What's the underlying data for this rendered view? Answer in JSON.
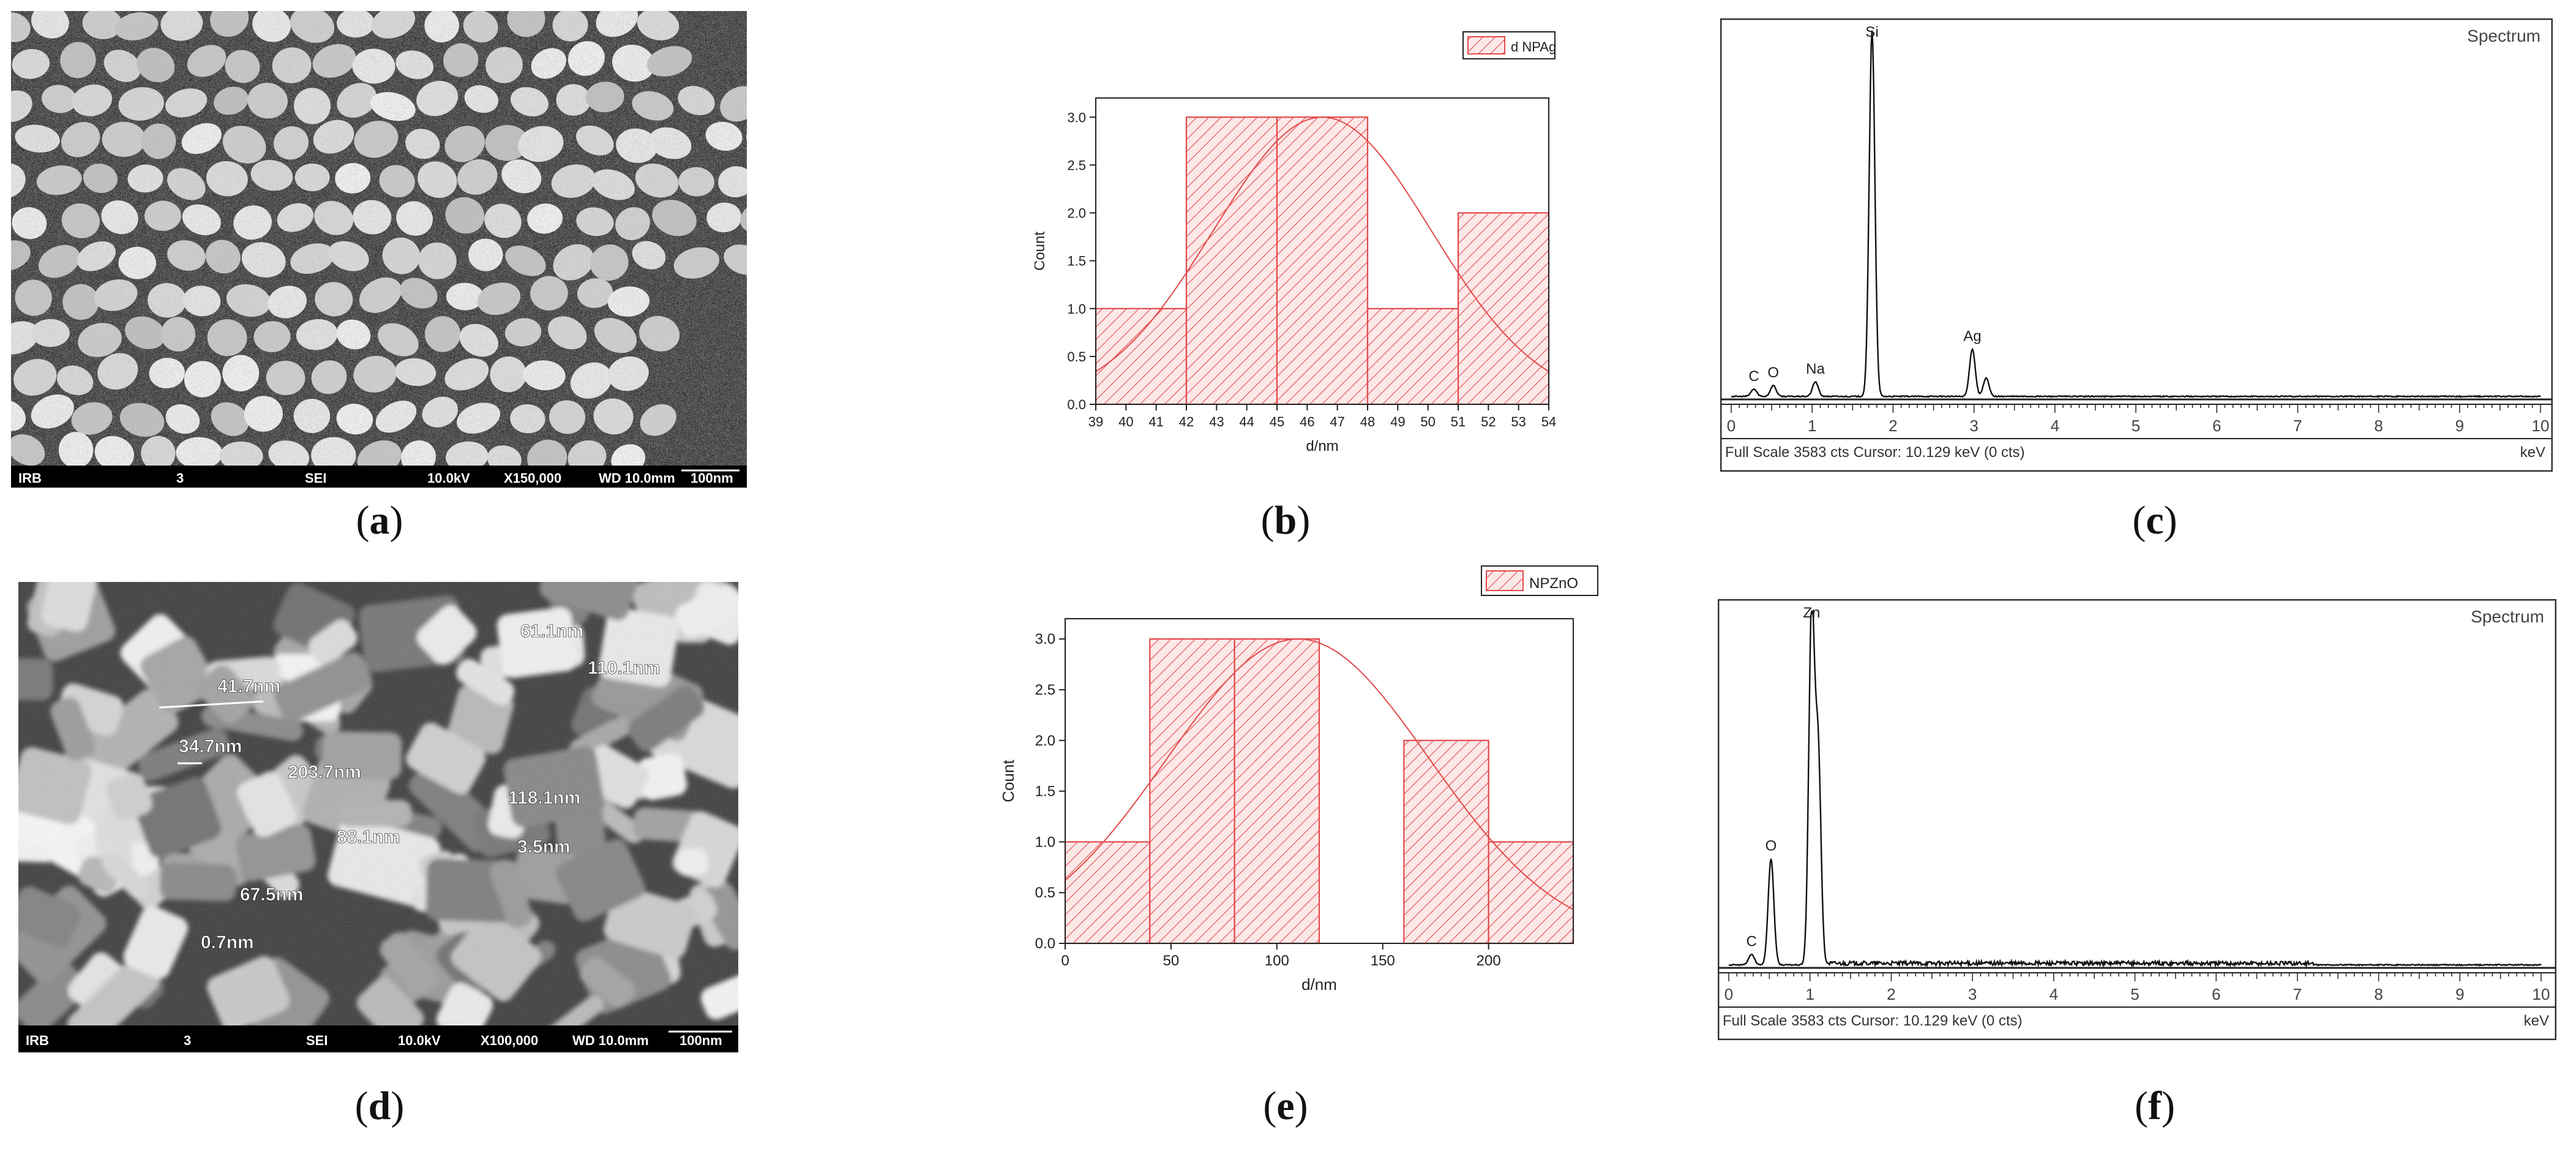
{
  "captions": {
    "a": {
      "open": "(",
      "letter": "a",
      "close": ")"
    },
    "b": {
      "open": "(",
      "letter": "b",
      "close": ")"
    },
    "c": {
      "open": "(",
      "letter": "c",
      "close": ")"
    },
    "d": {
      "open": "(",
      "letter": "d",
      "close": ")"
    },
    "e": {
      "open": "(",
      "letter": "e",
      "close": ")"
    },
    "f": {
      "open": "(",
      "letter": "f",
      "close": ")"
    }
  },
  "sem_a": {
    "bar": [
      "IRB",
      "3",
      "SEI",
      "10.0kV",
      "X150,000",
      "WD 10.0mm",
      "100nm"
    ],
    "labels": []
  },
  "sem_d": {
    "bar": [
      "IRB",
      "3",
      "SEI",
      "10.0kV",
      "X100,000",
      "WD 10.0mm",
      "100nm"
    ],
    "labels": [
      "61.1nm",
      "110.1nm",
      "41.7nm",
      "34.7nm",
      "203.7nm",
      "118.1nm",
      "88.1nm",
      "3.5nm",
      "67.5nm",
      "0.7nm"
    ]
  },
  "chart_data": [
    {
      "type": "bar",
      "panel": "b",
      "legend": "d NPAg",
      "legend_position": "top-right",
      "xlabel": "d/nm",
      "ylabel": "Count",
      "xlim": [
        39,
        54
      ],
      "ylim": [
        0,
        3.2
      ],
      "x_ticks": [
        39,
        40,
        41,
        42,
        43,
        44,
        45,
        46,
        47,
        48,
        49,
        50,
        51,
        52,
        53,
        54
      ],
      "y_ticks": [
        0.0,
        0.5,
        1.0,
        1.5,
        2.0,
        2.5,
        3.0
      ],
      "bins": [
        [
          39,
          42
        ],
        [
          42,
          45
        ],
        [
          45,
          48
        ],
        [
          48,
          51
        ],
        [
          51,
          54
        ]
      ],
      "values": [
        1,
        3,
        3,
        1,
        2
      ],
      "fit": {
        "type": "normal",
        "mean": 46.5,
        "sigma": 3.6,
        "peak": 3.0
      },
      "color": "#e34a4a",
      "grid": false
    },
    {
      "type": "line",
      "panel": "c",
      "title": "Spectrum",
      "xlabel": "keV",
      "xlim": [
        0,
        10
      ],
      "x_ticks": [
        0,
        1,
        2,
        3,
        4,
        5,
        6,
        7,
        8,
        9,
        10
      ],
      "footer": "Full Scale 3583 cts  Cursor: 10.129 keV (0 cts)",
      "peak_labels": [
        {
          "label": "C",
          "x": 0.28
        },
        {
          "label": "O",
          "x": 0.52
        },
        {
          "label": "Na",
          "x": 1.04
        },
        {
          "label": "Si",
          "x": 1.74
        },
        {
          "label": "Ag",
          "x": 2.98
        }
      ],
      "peaks": [
        {
          "x": 0.28,
          "h": 0.02
        },
        {
          "x": 0.52,
          "h": 0.03
        },
        {
          "x": 1.04,
          "h": 0.04
        },
        {
          "x": 1.74,
          "h": 1.0
        },
        {
          "x": 2.98,
          "h": 0.13
        },
        {
          "x": 3.15,
          "h": 0.05
        }
      ]
    },
    {
      "type": "bar",
      "panel": "e",
      "legend": "NPZnO",
      "legend_position": "top-right",
      "xlabel": "d/nm",
      "ylabel": "Count",
      "xlim": [
        0,
        240
      ],
      "ylim": [
        0,
        3.2
      ],
      "x_ticks": [
        0,
        50,
        100,
        150,
        200
      ],
      "y_ticks": [
        0.0,
        0.5,
        1.0,
        1.5,
        2.0,
        2.5,
        3.0
      ],
      "bins": [
        [
          0,
          40
        ],
        [
          40,
          80
        ],
        [
          80,
          120
        ],
        [
          120,
          160
        ],
        [
          160,
          200
        ],
        [
          200,
          240
        ]
      ],
      "values": [
        1,
        3,
        3,
        0,
        2,
        1
      ],
      "fit": {
        "type": "normal",
        "mean": 110,
        "sigma": 62,
        "peak": 3.0
      },
      "color": "#e34a4a",
      "grid": false
    },
    {
      "type": "line",
      "panel": "f",
      "title": "Spectrum",
      "xlabel": "keV",
      "xlim": [
        0,
        10
      ],
      "x_ticks": [
        0,
        1,
        2,
        3,
        4,
        5,
        6,
        7,
        8,
        9,
        10
      ],
      "footer": "Full Scale 3583 cts  Cursor: 10.129 keV (0 cts)",
      "peak_labels": [
        {
          "label": "C",
          "x": 0.28
        },
        {
          "label": "O",
          "x": 0.52
        },
        {
          "label": "Zn",
          "x": 1.02
        }
      ],
      "peaks": [
        {
          "x": 0.28,
          "h": 0.03
        },
        {
          "x": 0.52,
          "h": 0.3
        },
        {
          "x": 1.02,
          "h": 1.0
        },
        {
          "x": 1.1,
          "h": 0.6
        }
      ]
    }
  ]
}
